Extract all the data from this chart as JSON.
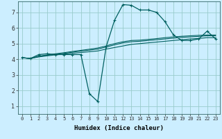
{
  "xlabel": "Humidex (Indice chaleur)",
  "bg_color": "#cceeff",
  "line_color": "#006060",
  "grid_color": "#99cccc",
  "xlim": [
    -0.5,
    23.5
  ],
  "ylim": [
    0.5,
    7.7
  ],
  "xticks": [
    0,
    1,
    2,
    3,
    4,
    5,
    6,
    7,
    8,
    9,
    10,
    11,
    12,
    13,
    14,
    15,
    16,
    17,
    18,
    19,
    20,
    21,
    22,
    23
  ],
  "yticks": [
    1,
    2,
    3,
    4,
    5,
    6,
    7
  ],
  "line1_x": [
    0,
    1,
    2,
    3,
    4,
    5,
    6,
    7,
    8,
    9,
    10,
    11,
    12,
    13,
    14,
    15,
    16,
    17,
    18,
    19,
    20,
    21,
    22,
    23
  ],
  "line1_y": [
    4.1,
    4.05,
    4.3,
    4.35,
    4.3,
    4.3,
    4.3,
    4.3,
    1.8,
    1.3,
    4.8,
    6.5,
    7.5,
    7.45,
    7.15,
    7.15,
    7.0,
    6.4,
    5.55,
    5.2,
    5.2,
    5.3,
    5.8,
    5.3
  ],
  "line2_x": [
    0,
    1,
    2,
    3,
    4,
    5,
    6,
    7,
    8,
    9,
    10,
    11,
    12,
    13,
    14,
    15,
    16,
    17,
    18,
    19,
    20,
    21,
    22,
    23
  ],
  "line2_y": [
    4.1,
    4.05,
    4.15,
    4.22,
    4.28,
    4.33,
    4.38,
    4.43,
    4.48,
    4.53,
    4.65,
    4.75,
    4.85,
    4.95,
    5.0,
    5.05,
    5.1,
    5.15,
    5.2,
    5.25,
    5.3,
    5.33,
    5.38,
    5.38
  ],
  "line3_x": [
    0,
    1,
    2,
    3,
    4,
    5,
    6,
    7,
    8,
    9,
    10,
    11,
    12,
    13,
    14,
    15,
    16,
    17,
    18,
    19,
    20,
    21,
    22,
    23
  ],
  "line3_y": [
    4.1,
    4.05,
    4.18,
    4.25,
    4.32,
    4.38,
    4.45,
    4.52,
    4.58,
    4.65,
    4.78,
    4.92,
    5.05,
    5.12,
    5.15,
    5.2,
    5.25,
    5.3,
    5.35,
    5.4,
    5.43,
    5.46,
    5.5,
    5.5
  ],
  "line4_x": [
    0,
    1,
    2,
    3,
    4,
    5,
    6,
    7,
    8,
    9,
    10,
    11,
    12,
    13,
    14,
    15,
    16,
    17,
    18,
    19,
    20,
    21,
    22,
    23
  ],
  "line4_y": [
    4.1,
    4.05,
    4.2,
    4.28,
    4.35,
    4.42,
    4.5,
    4.57,
    4.64,
    4.72,
    4.85,
    5.0,
    5.12,
    5.2,
    5.22,
    5.27,
    5.32,
    5.38,
    5.43,
    5.47,
    5.5,
    5.53,
    5.55,
    5.55
  ]
}
